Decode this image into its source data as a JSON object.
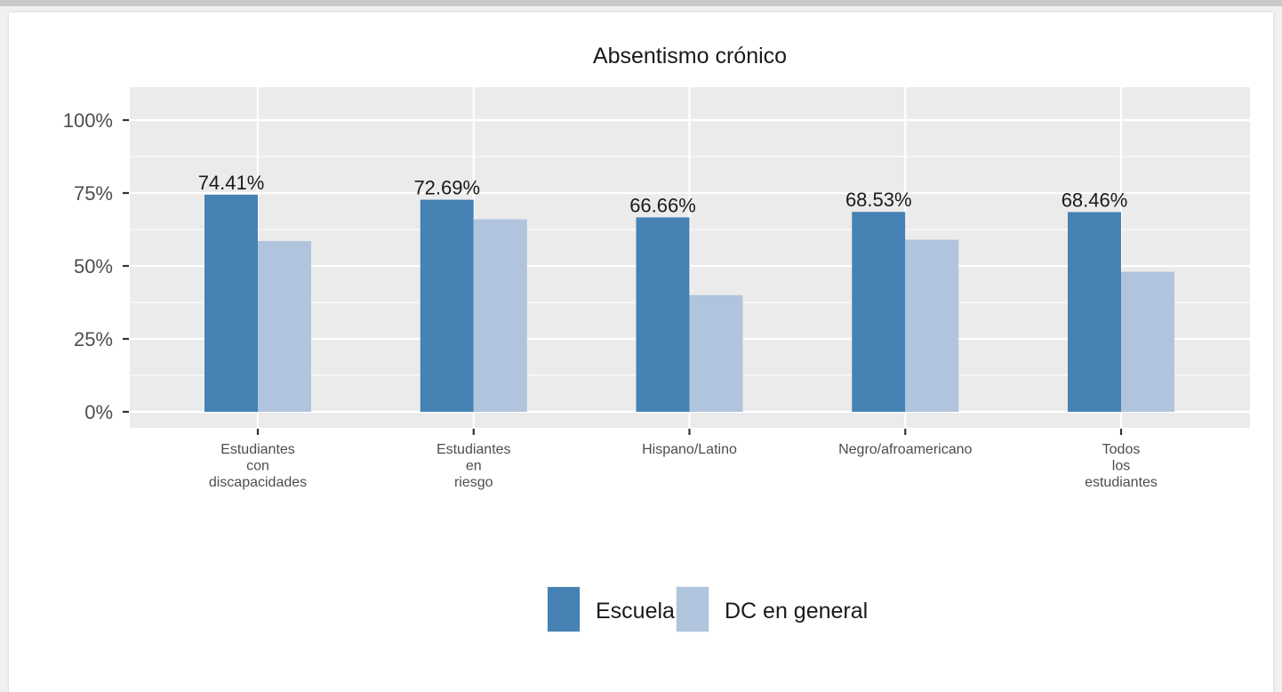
{
  "chart_data": {
    "type": "bar",
    "title": "Absentismo crónico",
    "xlabel": "",
    "ylabel": "",
    "categories": [
      "Estudiantes con discapacidades",
      "Estudiantes en riesgo",
      "Hispano/Latino",
      "Negro/afroamericano",
      "Todos los estudiantes"
    ],
    "category_label_lines": [
      [
        "Estudiantes",
        "con",
        "discapacidades"
      ],
      [
        "Estudiantes",
        "en",
        "riesgo"
      ],
      [
        "Hispano/Latino"
      ],
      [
        "Negro/afroamericano"
      ],
      [
        "Todos",
        "los",
        "estudiantes"
      ]
    ],
    "series": [
      {
        "name": "Escuela",
        "color": "#4682b4",
        "values": [
          74.41,
          72.69,
          66.66,
          68.53,
          68.46
        ],
        "labels": [
          "74.41%",
          "72.69%",
          "66.66%",
          "68.53%",
          "68.46%"
        ]
      },
      {
        "name": "DC en general",
        "color": "#b0c4de",
        "values": [
          58.5,
          66.0,
          40.0,
          59.0,
          48.0
        ]
      }
    ],
    "ylim": [
      0,
      100
    ],
    "yticks": [
      0,
      25,
      50,
      75,
      100
    ],
    "ytick_labels": [
      "0%",
      "25%",
      "50%",
      "75%",
      "100%"
    ],
    "grid": true,
    "panel_background": "#ebebeb",
    "gridline_color": "#ffffff",
    "legend_position": "bottom"
  }
}
